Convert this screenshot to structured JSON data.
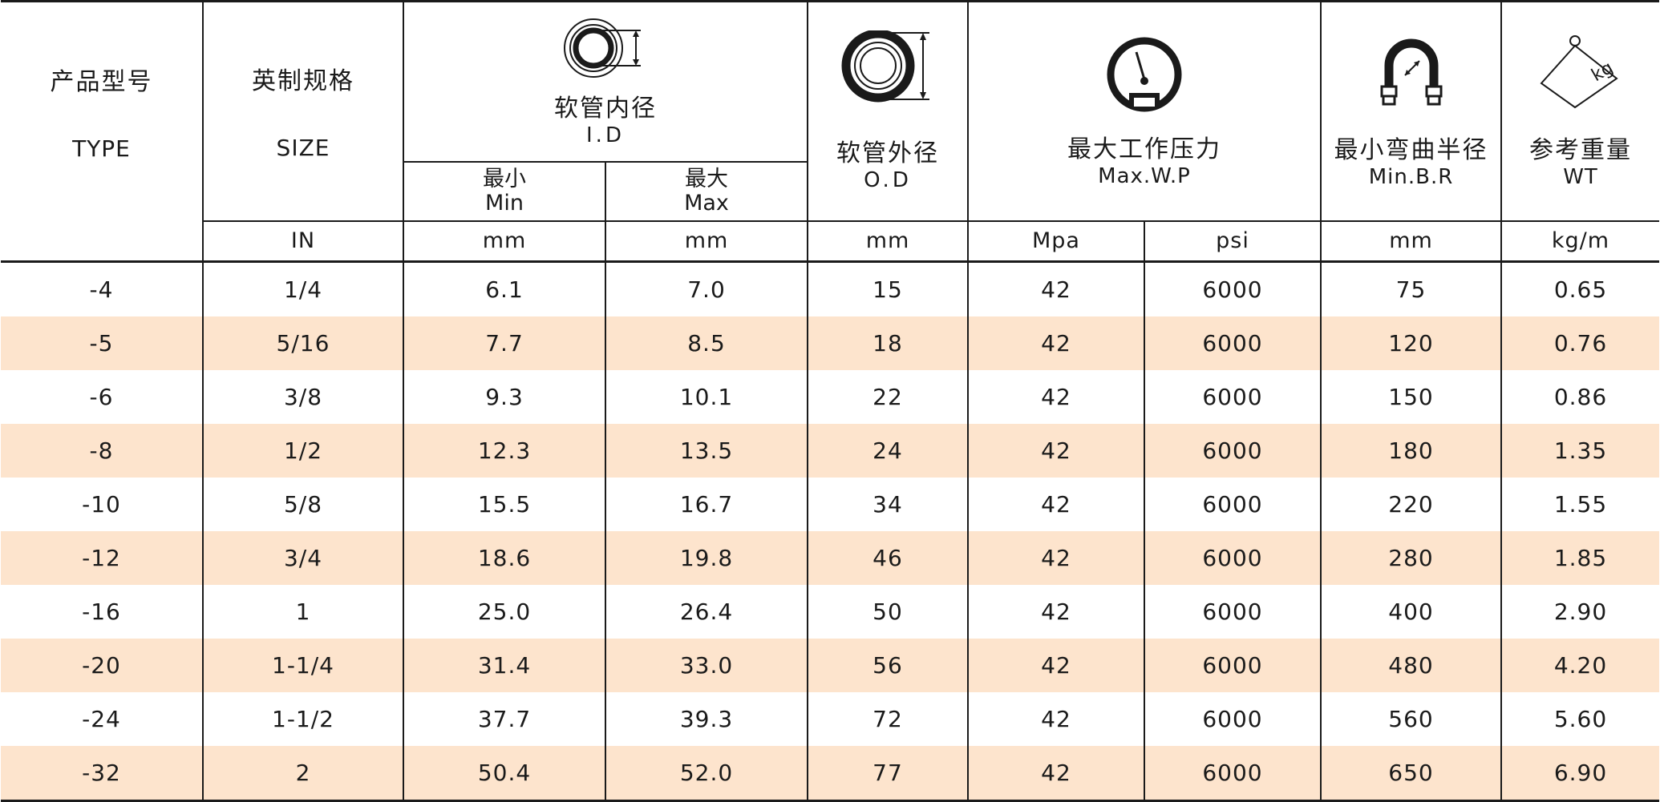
{
  "header": {
    "type": {
      "zh": "产品型号",
      "en": "TYPE"
    },
    "size": {
      "zh": "英制规格",
      "en": "SIZE",
      "unit": "IN"
    },
    "id": {
      "zh": "软管内径",
      "en": "I.D",
      "min_zh": "最小",
      "min_en": "Min",
      "max_zh": "最大",
      "max_en": "Max",
      "unit_min": "mm",
      "unit_max": "mm",
      "icon": "hose-inner-diameter-icon"
    },
    "od": {
      "zh": "软管外径",
      "en": "O.D",
      "unit": "mm",
      "icon": "hose-outer-diameter-icon"
    },
    "wp": {
      "zh": "最大工作压力",
      "en": "Max.W.P",
      "unit_mpa": "Mpa",
      "unit_psi": "psi",
      "icon": "pressure-gauge-icon"
    },
    "br": {
      "zh": "最小弯曲半径",
      "en": "Min.B.R",
      "unit": "mm",
      "icon": "bend-radius-icon"
    },
    "wt": {
      "zh": "参考重量",
      "en": "WT",
      "unit": "kg/m",
      "icon": "weight-icon",
      "icon_text": "kg"
    }
  },
  "rows": [
    {
      "type": "-4",
      "size": "1/4",
      "id_min": "6.1",
      "id_max": "7.0",
      "od": "15",
      "mpa": "42",
      "psi": "6000",
      "br": "75",
      "wt": "0.65"
    },
    {
      "type": "-5",
      "size": "5/16",
      "id_min": "7.7",
      "id_max": "8.5",
      "od": "18",
      "mpa": "42",
      "psi": "6000",
      "br": "120",
      "wt": "0.76"
    },
    {
      "type": "-6",
      "size": "3/8",
      "id_min": "9.3",
      "id_max": "10.1",
      "od": "22",
      "mpa": "42",
      "psi": "6000",
      "br": "150",
      "wt": "0.86"
    },
    {
      "type": "-8",
      "size": "1/2",
      "id_min": "12.3",
      "id_max": "13.5",
      "od": "24",
      "mpa": "42",
      "psi": "6000",
      "br": "180",
      "wt": "1.35"
    },
    {
      "type": "-10",
      "size": "5/8",
      "id_min": "15.5",
      "id_max": "16.7",
      "od": "34",
      "mpa": "42",
      "psi": "6000",
      "br": "220",
      "wt": "1.55"
    },
    {
      "type": "-12",
      "size": "3/4",
      "id_min": "18.6",
      "id_max": "19.8",
      "od": "46",
      "mpa": "42",
      "psi": "6000",
      "br": "280",
      "wt": "1.85"
    },
    {
      "type": "-16",
      "size": "1",
      "id_min": "25.0",
      "id_max": "26.4",
      "od": "50",
      "mpa": "42",
      "psi": "6000",
      "br": "400",
      "wt": "2.90"
    },
    {
      "type": "-20",
      "size": "1-1/4",
      "id_min": "31.4",
      "id_max": "33.0",
      "od": "56",
      "mpa": "42",
      "psi": "6000",
      "br": "480",
      "wt": "4.20"
    },
    {
      "type": "-24",
      "size": "1-1/2",
      "id_min": "37.7",
      "id_max": "39.3",
      "od": "72",
      "mpa": "42",
      "psi": "6000",
      "br": "560",
      "wt": "5.60"
    },
    {
      "type": "-32",
      "size": "2",
      "id_min": "50.4",
      "id_max": "52.0",
      "od": "77",
      "mpa": "42",
      "psi": "6000",
      "br": "650",
      "wt": "6.90"
    }
  ],
  "colors": {
    "shade": "#fde4cd",
    "line": "#1a1a1a"
  }
}
